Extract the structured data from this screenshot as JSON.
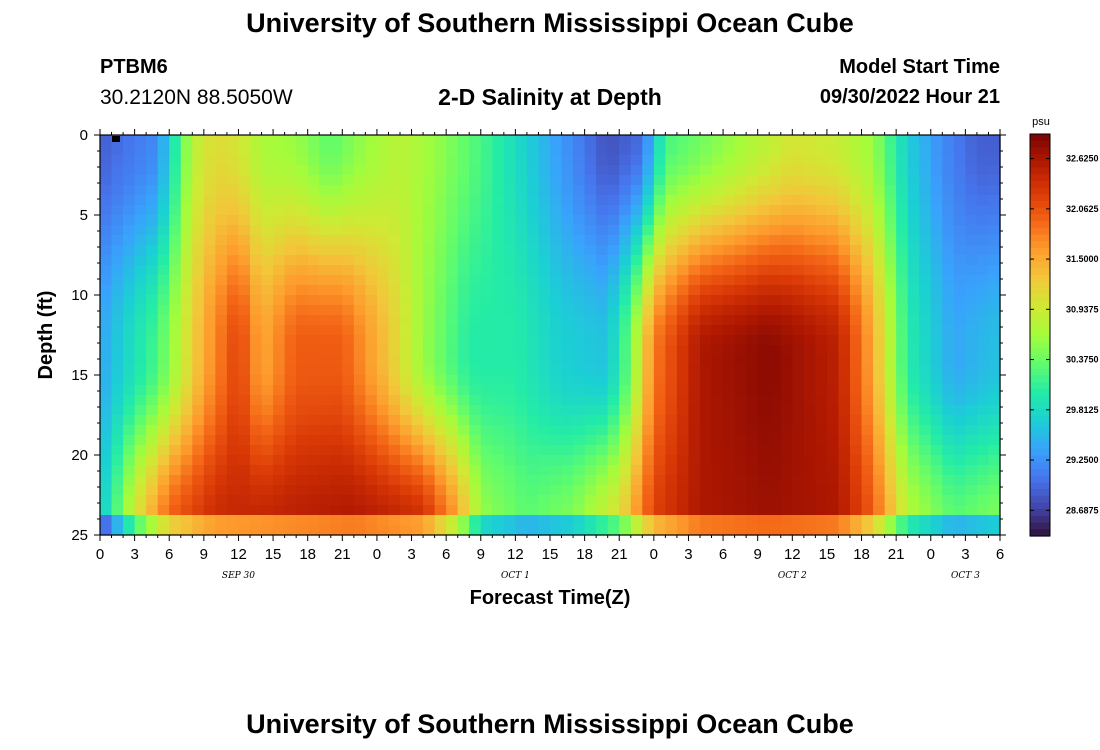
{
  "header": {
    "title": "University of Southern Mississippi Ocean Cube",
    "station": "PTBM6",
    "coords": "30.2120N  88.5050W",
    "subtitle": "2-D Salinity at Depth",
    "model_start_label": "Model Start Time",
    "model_start_value": "09/30/2022 Hour 21"
  },
  "footer": {
    "title": "University of Southern Mississippi Ocean Cube"
  },
  "chart_data": {
    "type": "heatmap",
    "title": "2-D Salinity at Depth",
    "xlabel": "Forecast Time(Z)",
    "ylabel": "Depth (ft)",
    "x_tick_labels": [
      "0",
      "3",
      "6",
      "9",
      "12",
      "15",
      "18",
      "21",
      "0",
      "3",
      "6",
      "9",
      "12",
      "15",
      "18",
      "21",
      "0",
      "3",
      "6",
      "9",
      "12",
      "15",
      "18",
      "21",
      "0",
      "3",
      "6"
    ],
    "x_range_hours": [
      0,
      78
    ],
    "date_labels": [
      {
        "text": "SEP 30",
        "hour": 12
      },
      {
        "text": "OCT 1",
        "hour": 36
      },
      {
        "text": "OCT 2",
        "hour": 60
      },
      {
        "text": "OCT 3",
        "hour": 75
      }
    ],
    "y_tick_labels": [
      "0",
      "5",
      "10",
      "15",
      "20",
      "25"
    ],
    "y_range_ft": [
      0,
      25
    ],
    "y_inverted": true,
    "colorbar": {
      "unit": "psu",
      "min": 28.4,
      "max": 32.9,
      "tick_labels": [
        "32.6250",
        "32.0625",
        "31.5000",
        "30.9375",
        "30.3750",
        "29.8125",
        "29.2500",
        "28.6875"
      ],
      "colors": [
        "#30123b",
        "#4145ab",
        "#4675ed",
        "#39a2fc",
        "#1bcfd4",
        "#24eca6",
        "#61fc6c",
        "#a4fc3b",
        "#d1e834",
        "#f3c63a",
        "#fe9b2d",
        "#f36315",
        "#d93806",
        "#b11901",
        "#7a0403"
      ]
    },
    "grid": {
      "nx": 78,
      "ny": 40,
      "description": "salinity psu, columns = forecast hours 0-78, rows = depth 0-25 ft",
      "surface_psu": [
        [
          0,
          28.9
        ],
        [
          5,
          29.2
        ],
        [
          8,
          30.8
        ],
        [
          10,
          31.1
        ],
        [
          12,
          31.0
        ],
        [
          14,
          30.7
        ],
        [
          17,
          30.6
        ],
        [
          20,
          30.3
        ],
        [
          23,
          30.6
        ],
        [
          26,
          30.8
        ],
        [
          29,
          30.6
        ],
        [
          33,
          30.2
        ],
        [
          37,
          29.7
        ],
        [
          40,
          29.3
        ],
        [
          44,
          28.8
        ],
        [
          47,
          29.0
        ],
        [
          49,
          30.2
        ],
        [
          52,
          30.4
        ],
        [
          56,
          30.7
        ],
        [
          60,
          31.0
        ],
        [
          64,
          30.9
        ],
        [
          67,
          30.6
        ],
        [
          70,
          29.7
        ],
        [
          73,
          29.2
        ],
        [
          76,
          28.9
        ],
        [
          78,
          28.9
        ]
      ],
      "mid_psu": [
        [
          0,
          29.4
        ],
        [
          5,
          30.2
        ],
        [
          9,
          31.5
        ],
        [
          12,
          32.2
        ],
        [
          14,
          31.5
        ],
        [
          17,
          32.0
        ],
        [
          21,
          32.0
        ],
        [
          25,
          31.3
        ],
        [
          28,
          30.6
        ],
        [
          32,
          30.0
        ],
        [
          36,
          30.0
        ],
        [
          40,
          29.7
        ],
        [
          44,
          29.6
        ],
        [
          46,
          30.4
        ],
        [
          48,
          31.8
        ],
        [
          52,
          32.6
        ],
        [
          58,
          32.8
        ],
        [
          64,
          32.5
        ],
        [
          67,
          31.5
        ],
        [
          70,
          30.0
        ],
        [
          74,
          29.4
        ],
        [
          78,
          29.6
        ]
      ],
      "bottom_psu": [
        [
          0,
          29.6
        ],
        [
          3,
          31.0
        ],
        [
          6,
          32.0
        ],
        [
          10,
          32.4
        ],
        [
          16,
          32.5
        ],
        [
          22,
          32.6
        ],
        [
          28,
          32.4
        ],
        [
          31,
          31.6
        ],
        [
          33,
          30.6
        ],
        [
          37,
          30.3
        ],
        [
          41,
          30.5
        ],
        [
          45,
          31.1
        ],
        [
          48,
          32.2
        ],
        [
          52,
          32.6
        ],
        [
          58,
          32.7
        ],
        [
          64,
          32.6
        ],
        [
          67,
          32.0
        ],
        [
          70,
          30.8
        ],
        [
          74,
          30.3
        ],
        [
          78,
          30.5
        ]
      ]
    }
  }
}
